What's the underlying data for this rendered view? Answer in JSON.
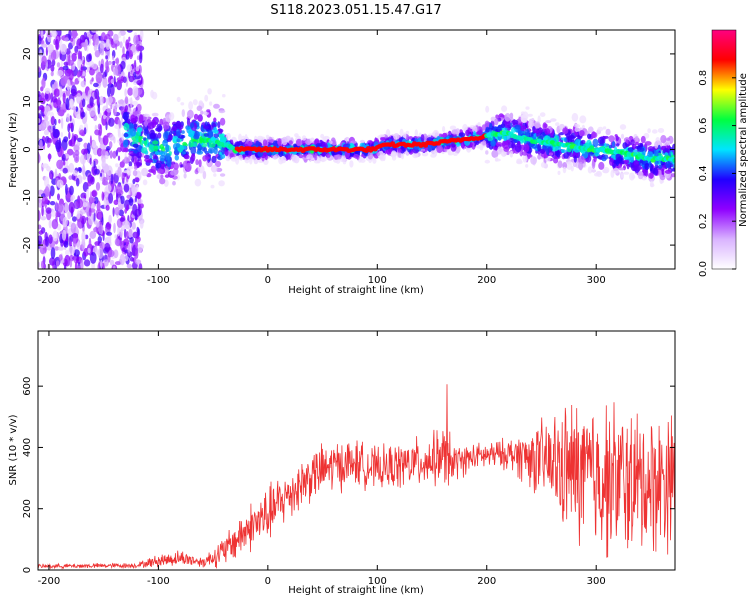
{
  "figure": {
    "title": "S118.2023.051.15.47.G17"
  },
  "chart_data": [
    {
      "type": "heatmap",
      "xlabel": "Height of straight line (km)",
      "ylabel": "Frequency (Hz)",
      "xlim": [
        -210,
        372
      ],
      "ylim": [
        -25,
        25
      ],
      "xticks": [
        -200,
        -100,
        0,
        100,
        200,
        300
      ],
      "yticks": [
        -20,
        -10,
        0,
        10,
        20
      ],
      "colorbar": {
        "label": "Normalized spectral amplitude",
        "range": [
          0,
          1
        ],
        "ticks": [
          0.0,
          0.2,
          0.4,
          0.6,
          0.8
        ],
        "tick_labels": [
          "0.0",
          "0.2",
          "0.4",
          "0.6",
          "0.8"
        ],
        "colormap": [
          "#ffffff",
          "#d9b3ff",
          "#8f00ff",
          "#2000ff",
          "#00e5ff",
          "#00ff40",
          "#ffff00",
          "#ff0000",
          "#ff0080"
        ]
      },
      "ridge": {
        "x": [
          -130,
          -110,
          -90,
          -70,
          -50,
          -40,
          -30,
          0,
          50,
          80,
          95,
          110,
          140,
          160,
          190,
          205,
          215,
          240,
          270,
          300,
          330,
          350,
          372
        ],
        "y": [
          4,
          1,
          0,
          2,
          2,
          1,
          0,
          0,
          0,
          0,
          0,
          1,
          1,
          1.5,
          2.5,
          3,
          3.5,
          2,
          1,
          0,
          -1,
          -2,
          -2
        ]
      },
      "grid": false
    },
    {
      "type": "line",
      "xlabel": "Height of straight line (km)",
      "ylabel": "SNR (10 * v/v)",
      "xlim": [
        -210,
        372
      ],
      "ylim": [
        0,
        780
      ],
      "xticks": [
        -200,
        -100,
        0,
        100,
        200,
        300
      ],
      "yticks": [
        0,
        200,
        400,
        600
      ],
      "series_color": "#ee3333",
      "envelope": {
        "x": [
          -210,
          -120,
          -100,
          -80,
          -60,
          -40,
          -20,
          0,
          20,
          40,
          60,
          80,
          100,
          120,
          150,
          165,
          170,
          190,
          220,
          250,
          280,
          310,
          340,
          372
        ],
        "mean": [
          12,
          15,
          30,
          40,
          25,
          60,
          130,
          180,
          250,
          310,
          340,
          350,
          330,
          340,
          360,
          380,
          350,
          370,
          380,
          360,
          320,
          300,
          280,
          300
        ],
        "spread": [
          8,
          10,
          25,
          30,
          20,
          60,
          90,
          110,
          100,
          100,
          100,
          90,
          80,
          90,
          100,
          120,
          70,
          50,
          60,
          150,
          280,
          300,
          280,
          260
        ]
      },
      "grid": false
    }
  ]
}
